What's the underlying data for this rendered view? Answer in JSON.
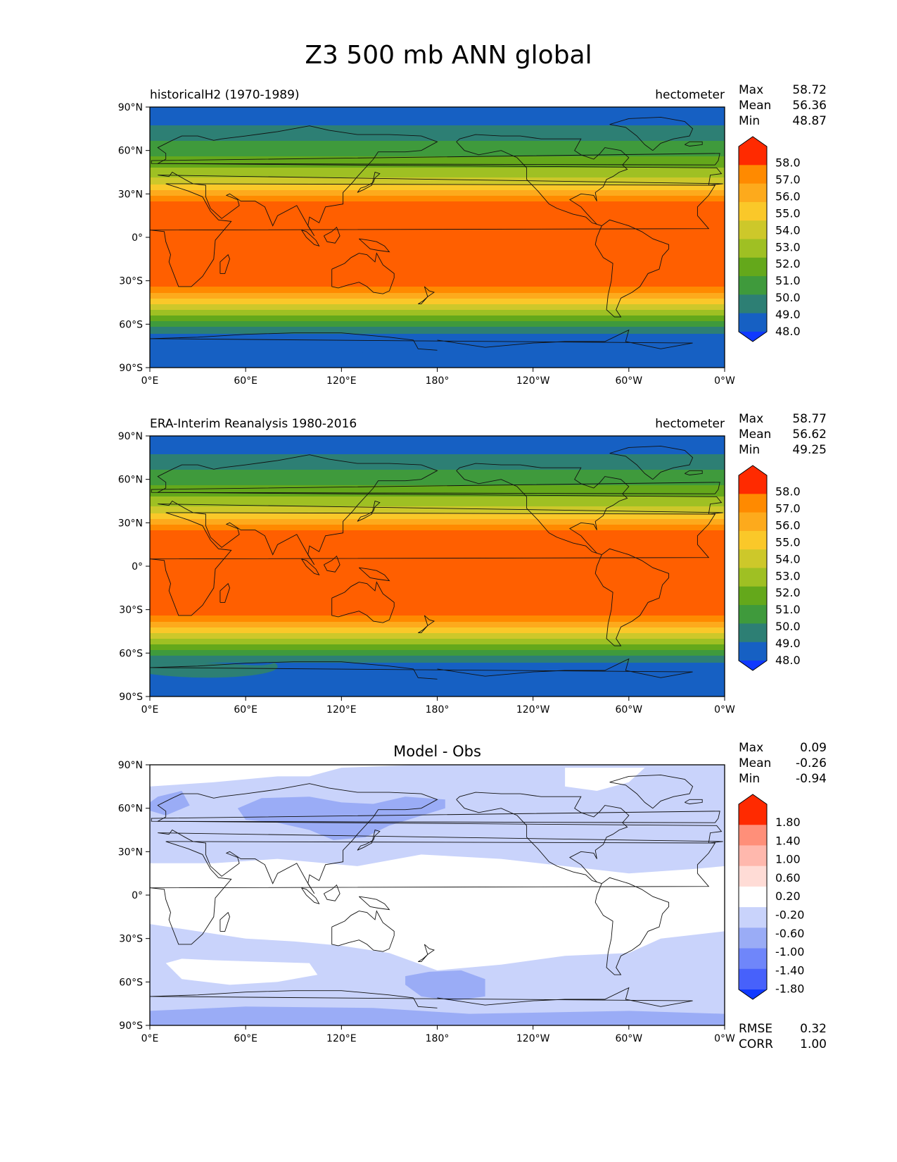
{
  "figure": {
    "title": "Z3 500 mb ANN global"
  },
  "axes": {
    "lon_ticks": [
      "0°E",
      "60°E",
      "120°E",
      "180°",
      "120°W",
      "60°W",
      "0°W"
    ],
    "lat_ticks": [
      "90°N",
      "60°N",
      "30°N",
      "0°",
      "30°S",
      "60°S",
      "90°S"
    ]
  },
  "panels": [
    {
      "id": "model",
      "title_left": "historicalH2 (1970-1989)",
      "title_center": "",
      "title_right": "hectometer",
      "stats": [
        {
          "label": "Max",
          "value": "58.72"
        },
        {
          "label": "Mean",
          "value": "56.36"
        },
        {
          "label": "Min",
          "value": "48.87"
        }
      ],
      "colorbar_labels": [
        "58.0",
        "57.0",
        "56.0",
        "55.0",
        "54.0",
        "53.0",
        "52.0",
        "51.0",
        "50.0",
        "49.0",
        "48.0"
      ],
      "colors": [
        "#ff2a00",
        "#ff5f00",
        "#ff8a00",
        "#fdaa1c",
        "#fac829",
        "#cdc82a",
        "#9fc023",
        "#64a81b",
        "#3f9a3c",
        "#2d7f74",
        "#1660c3",
        "#1039ff"
      ],
      "extra_stats": []
    },
    {
      "id": "obs",
      "title_left": "ERA-Interim Reanalysis 1980-2016",
      "title_center": "",
      "title_right": "hectometer",
      "stats": [
        {
          "label": "Max",
          "value": "58.77"
        },
        {
          "label": "Mean",
          "value": "56.62"
        },
        {
          "label": "Min",
          "value": "49.25"
        }
      ],
      "colorbar_labels": [
        "58.0",
        "57.0",
        "56.0",
        "55.0",
        "54.0",
        "53.0",
        "52.0",
        "51.0",
        "50.0",
        "49.0",
        "48.0"
      ],
      "colors": [
        "#ff2a00",
        "#ff5f00",
        "#ff8a00",
        "#fdaa1c",
        "#fac829",
        "#cdc82a",
        "#9fc023",
        "#64a81b",
        "#3f9a3c",
        "#2d7f74",
        "#1660c3",
        "#1039ff"
      ],
      "extra_stats": []
    },
    {
      "id": "diff",
      "title_left": "",
      "title_center": "Model - Obs",
      "title_right": "",
      "stats": [
        {
          "label": "Max",
          "value": "0.09"
        },
        {
          "label": "Mean",
          "value": "-0.26"
        },
        {
          "label": "Min",
          "value": "-0.94"
        }
      ],
      "colorbar_labels": [
        "1.80",
        "1.40",
        "1.00",
        "0.60",
        "0.20",
        "-0.20",
        "-0.60",
        "-1.00",
        "-1.40",
        "-1.80"
      ],
      "colors": [
        "#ff2a00",
        "#ff5c43",
        "#ff8f79",
        "#ffb8ad",
        "#ffdcd6",
        "#ffffff",
        "#c9d3fb",
        "#9aacf6",
        "#6f86fa",
        "#4761fb",
        "#1039ff"
      ],
      "extra_stats": [
        {
          "label": "RMSE",
          "value": "0.32"
        },
        {
          "label": "CORR",
          "value": "1.00"
        }
      ]
    }
  ]
}
